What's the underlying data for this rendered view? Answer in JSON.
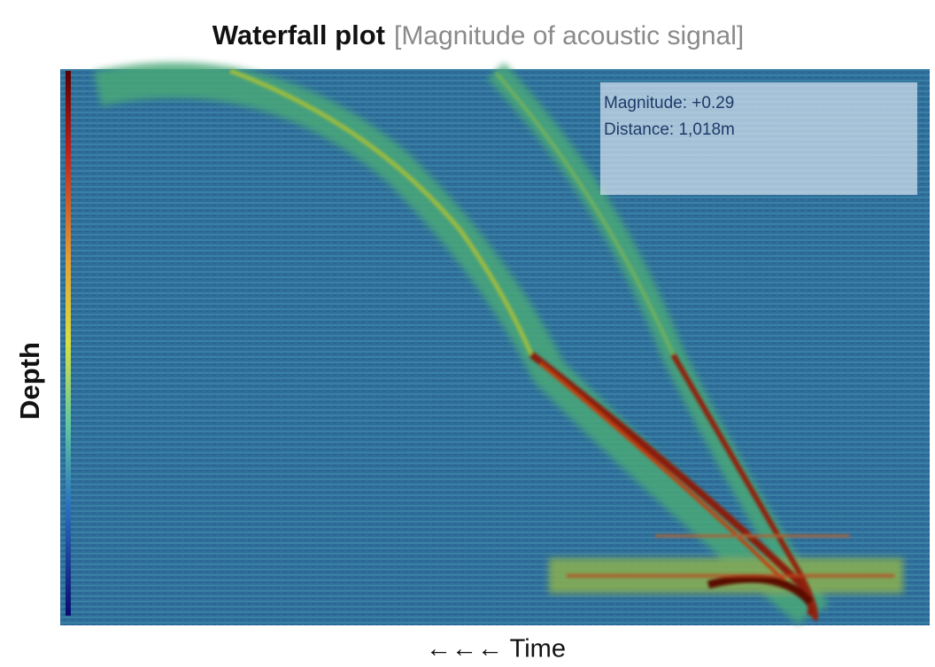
{
  "header": {
    "title": "Waterfall plot",
    "subtitle": "[Magnitude of acoustic signal]"
  },
  "axes": {
    "y_label": "Depth",
    "x_label": "←←← Time"
  },
  "readout": {
    "lines": [
      "Magnitude: +0.29",
      "Distance: 1,018m"
    ]
  }
}
